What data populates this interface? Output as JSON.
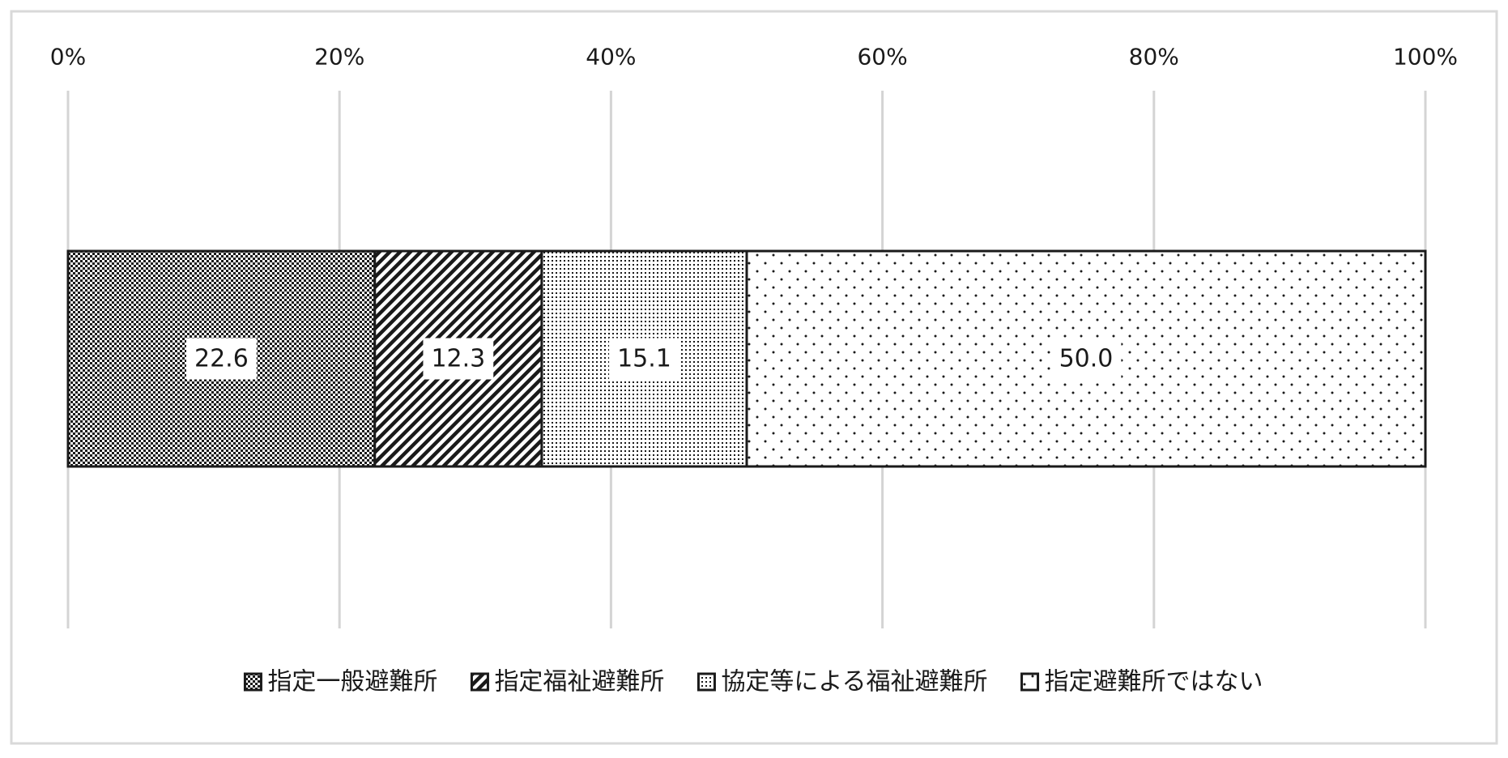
{
  "chart_data": {
    "type": "bar",
    "orientation": "horizontal",
    "stacked": true,
    "percent_stacked": true,
    "title": "",
    "xlabel": "",
    "ylabel": "",
    "xlim": [
      0,
      100
    ],
    "x_ticks": [
      0,
      20,
      40,
      60,
      80,
      100
    ],
    "x_tick_labels": [
      "0%",
      "20%",
      "40%",
      "60%",
      "80%",
      "100%"
    ],
    "x_axis_position": "top",
    "grid": "vertical",
    "legend_position": "bottom",
    "categories": [
      ""
    ],
    "series": [
      {
        "name": "指定一般避難所",
        "values": [
          22.6
        ],
        "data_label": "22.6",
        "pattern": "checker"
      },
      {
        "name": "指定福祉避難所",
        "values": [
          12.3
        ],
        "data_label": "12.3",
        "pattern": "diagonal"
      },
      {
        "name": "協定等による福祉避難所",
        "values": [
          15.1
        ],
        "data_label": "15.1",
        "pattern": "fine-dots"
      },
      {
        "name": "指定避難所ではない",
        "values": [
          50.0
        ],
        "data_label": "50.0",
        "pattern": "sparse-dots"
      }
    ],
    "colors": {
      "ink": "#1a1a1a",
      "grid": "#d4d4d4",
      "frame": "#d9d9d9"
    }
  }
}
